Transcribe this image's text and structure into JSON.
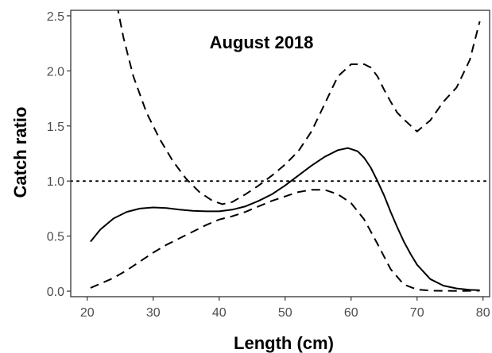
{
  "chart_data": {
    "type": "line",
    "title": "August 2018",
    "xlabel": "Length (cm)",
    "ylabel": "Catch ratio",
    "xlim": [
      17.5,
      81
    ],
    "ylim": [
      -0.05,
      2.55
    ],
    "x_ticks": [
      20,
      30,
      40,
      50,
      60,
      70,
      80
    ],
    "x_tick_labels": [
      "20",
      "30",
      "40",
      "50",
      "60",
      "70",
      "80"
    ],
    "y_ticks": [
      0.0,
      0.5,
      1.0,
      1.5,
      2.0,
      2.5
    ],
    "y_tick_labels": [
      "0.0",
      "0.5",
      "1.0",
      "1.5",
      "2.0",
      "2.5"
    ],
    "grid": false,
    "reference_line": {
      "y": 1.0,
      "style": "dotted"
    },
    "series": [
      {
        "style": "solid",
        "x": [
          20.5,
          22,
          24,
          26,
          28,
          30,
          32,
          34,
          36,
          38,
          40,
          42,
          44,
          46,
          48,
          50,
          52,
          54,
          56,
          58,
          59.5,
          61,
          62,
          63,
          64,
          65,
          66,
          67,
          68,
          69,
          70,
          72,
          74,
          76,
          78,
          79.5
        ],
        "y": [
          0.45,
          0.56,
          0.66,
          0.72,
          0.75,
          0.76,
          0.755,
          0.74,
          0.73,
          0.725,
          0.725,
          0.74,
          0.77,
          0.82,
          0.88,
          0.96,
          1.05,
          1.14,
          1.22,
          1.28,
          1.3,
          1.27,
          1.21,
          1.12,
          1.0,
          0.87,
          0.72,
          0.58,
          0.45,
          0.34,
          0.24,
          0.11,
          0.05,
          0.025,
          0.012,
          0.008
        ]
      },
      {
        "style": "dashed",
        "x": [
          20.5,
          24,
          26,
          28,
          30,
          32,
          34,
          36,
          38,
          40,
          42,
          44,
          46,
          48,
          50,
          52,
          54,
          56,
          58,
          60,
          62,
          64,
          66,
          68,
          70,
          72,
          74,
          76,
          78,
          79.5
        ],
        "y": [
          0.03,
          0.12,
          0.19,
          0.27,
          0.35,
          0.42,
          0.48,
          0.54,
          0.6,
          0.65,
          0.68,
          0.72,
          0.77,
          0.82,
          0.86,
          0.9,
          0.92,
          0.92,
          0.88,
          0.8,
          0.65,
          0.43,
          0.2,
          0.06,
          0.015,
          0.005,
          0.003,
          0.002,
          0.003,
          0.005
        ]
      },
      {
        "style": "dashed",
        "x": [
          24.5,
          25.5,
          27,
          29,
          31,
          33,
          35,
          37,
          39,
          40.5,
          42,
          44,
          46,
          48,
          50,
          52,
          54,
          56,
          58,
          60,
          62,
          63,
          64,
          65,
          66,
          67,
          68,
          70,
          72,
          74,
          76,
          78,
          79.5
        ],
        "y": [
          2.6,
          2.3,
          1.95,
          1.62,
          1.38,
          1.18,
          1.02,
          0.9,
          0.82,
          0.79,
          0.81,
          0.88,
          0.96,
          1.05,
          1.15,
          1.27,
          1.45,
          1.7,
          1.95,
          2.06,
          2.06,
          2.03,
          1.95,
          1.83,
          1.72,
          1.62,
          1.56,
          1.45,
          1.55,
          1.72,
          1.85,
          2.1,
          2.45
        ]
      }
    ]
  }
}
